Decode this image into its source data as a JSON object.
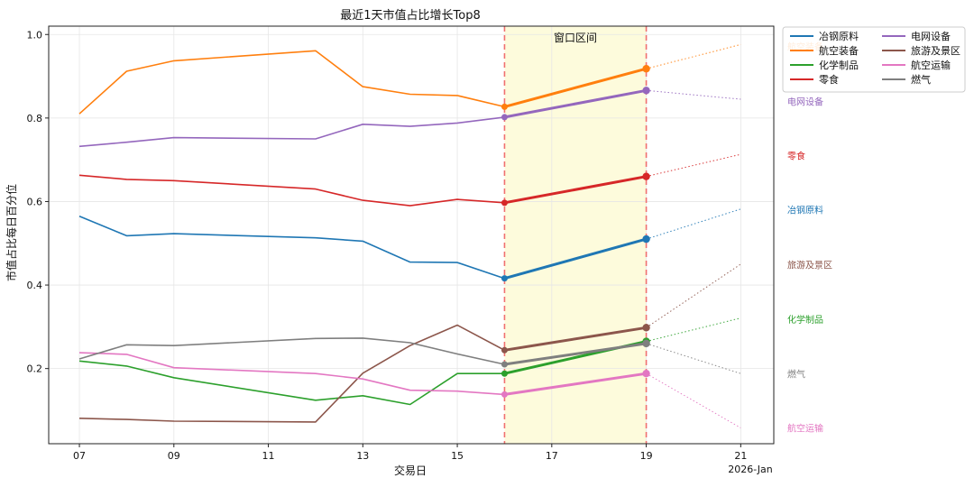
{
  "chart_data": {
    "type": "line",
    "title": "最近1天市值占比增长Top8",
    "xlabel": "交易日",
    "ylabel": "市值占比每日百分位",
    "x_tick_labels": [
      "07",
      "09",
      "11",
      "13",
      "15",
      "17",
      "19",
      "21"
    ],
    "x_tick_days": [
      7,
      9,
      11,
      13,
      15,
      17,
      19,
      21
    ],
    "x_offset_label": "2026-Jan",
    "xlim": [
      6.35,
      21.7
    ],
    "ylim": [
      0.02,
      1.02
    ],
    "y_ticks": [
      0.2,
      0.4,
      0.6,
      0.8,
      1.0
    ],
    "y_tick_labels": [
      "0.2",
      "0.4",
      "0.6",
      "0.8",
      "1.0"
    ],
    "grid": true,
    "window": {
      "label": "窗口区间",
      "start": 16,
      "end": 19,
      "fill": "#fdfbdc",
      "line_color": "#f07070"
    },
    "legend": {
      "placement": "outside-top-right",
      "columns": 2
    },
    "x": [
      7,
      8,
      9,
      12,
      13,
      14,
      15,
      16,
      19
    ],
    "series": [
      {
        "name": "冶钢原料",
        "color": "#1f77b4",
        "values": [
          0.565,
          0.518,
          0.523,
          0.513,
          0.505,
          0.455,
          0.454,
          0.416,
          0.51
        ],
        "forecast": 0.582
      },
      {
        "name": "航空装备",
        "color": "#ff7f0e",
        "values": [
          0.81,
          0.912,
          0.937,
          0.961,
          0.875,
          0.857,
          0.854,
          0.827,
          0.918
        ],
        "forecast": 0.976
      },
      {
        "name": "化学制品",
        "color": "#2ca02c",
        "values": [
          0.218,
          0.206,
          0.178,
          0.124,
          0.135,
          0.114,
          0.188,
          0.188,
          0.265
        ],
        "forecast": 0.321
      },
      {
        "name": "零食",
        "color": "#d62728",
        "values": [
          0.663,
          0.653,
          0.65,
          0.63,
          0.603,
          0.59,
          0.605,
          0.597,
          0.66
        ],
        "forecast": 0.713
      },
      {
        "name": "电网设备",
        "color": "#9467bd",
        "values": [
          0.732,
          0.742,
          0.753,
          0.75,
          0.785,
          0.78,
          0.788,
          0.802,
          0.866
        ],
        "forecast": 0.845
      },
      {
        "name": "旅游及景区",
        "color": "#8c564b",
        "values": [
          0.081,
          0.078,
          0.074,
          0.072,
          0.189,
          0.255,
          0.304,
          0.244,
          0.298
        ],
        "forecast": 0.45
      },
      {
        "name": "航空运输",
        "color": "#e377c2",
        "values": [
          0.238,
          0.234,
          0.202,
          0.188,
          0.175,
          0.148,
          0.146,
          0.138,
          0.188
        ],
        "forecast": 0.058
      },
      {
        "name": "燃气",
        "color": "#7f7f7f",
        "values": [
          0.223,
          0.257,
          0.255,
          0.272,
          0.273,
          0.262,
          0.235,
          0.21,
          0.26
        ],
        "forecast": 0.188
      }
    ],
    "end_labels": [
      {
        "text": "航空装备",
        "color": "#ff7f0e",
        "value": 0.971
      },
      {
        "text": "电网设备",
        "color": "#9467bd",
        "value": 0.84
      },
      {
        "text": "零食",
        "color": "#d62728",
        "value": 0.71
      },
      {
        "text": "冶钢原料",
        "color": "#1f77b4",
        "value": 0.58
      },
      {
        "text": "旅游及景区",
        "color": "#8c564b",
        "value": 0.449
      },
      {
        "text": "化学制品",
        "color": "#2ca02c",
        "value": 0.318
      },
      {
        "text": "燃气",
        "color": "#7f7f7f",
        "value": 0.187
      },
      {
        "text": "航空运输",
        "color": "#e377c2",
        "value": 0.058
      }
    ]
  }
}
